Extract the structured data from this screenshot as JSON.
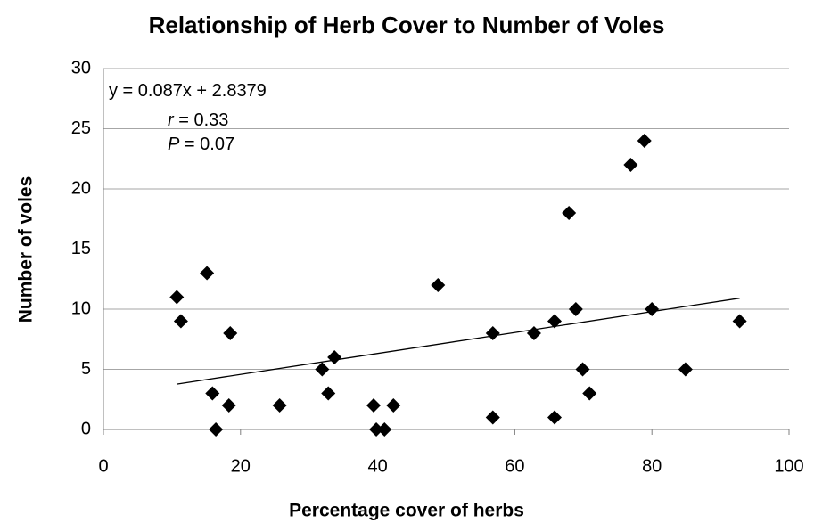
{
  "chart_data": {
    "type": "scatter",
    "title": "Relationship of Herb Cover to Number of Voles",
    "x_label": "Percentage cover of herbs",
    "y_label": "Number of voles",
    "x": [
      10.7,
      11.3,
      15.1,
      15.9,
      16.4,
      18.5,
      18.3,
      25.7,
      31.9,
      32.8,
      33.7,
      39.4,
      39.8,
      41.0,
      42.3,
      48.8,
      56.8,
      56.8,
      62.8,
      65.8,
      65.8,
      67.9,
      68.9,
      69.9,
      70.9,
      76.9,
      78.9,
      80.0,
      84.9,
      92.8
    ],
    "y": [
      11,
      9,
      13,
      3,
      0,
      8,
      2,
      2,
      5,
      3,
      6,
      2,
      0,
      0,
      2,
      12,
      8,
      1,
      8,
      9,
      1,
      18,
      10,
      5,
      3,
      22,
      24,
      10,
      5,
      9
    ],
    "color": "#000000",
    "trendline": {
      "slope": 0.087,
      "intercept": 2.8379
    },
    "annotations": [
      {
        "text": "y = 0.087x + 2.8379"
      },
      {
        "symbol": "r",
        "text": " = 0.33"
      },
      {
        "symbol": "P",
        "text": " = 0.07"
      }
    ],
    "xlim": [
      0,
      100
    ],
    "xticks": [
      0,
      20,
      40,
      60,
      80,
      100
    ],
    "ylim": [
      0,
      30
    ],
    "yticks": [
      0,
      5,
      10,
      15,
      20,
      25,
      30
    ],
    "grid": true
  }
}
